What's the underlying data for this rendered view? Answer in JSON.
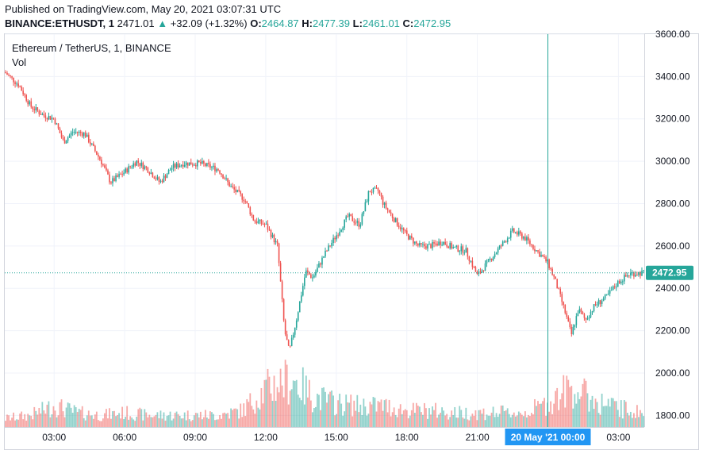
{
  "published_line": "Published on TradingView.com, May 20, 2021 03:07:31 UTC",
  "header": {
    "symbol": "BINANCE:ETHUSDT, 1",
    "last": "2471.01",
    "change": "+32.09 (+1.32%)",
    "o_label": "O:",
    "o": "2464.87",
    "h_label": "H:",
    "h": "2477.39",
    "l_label": "L:",
    "l": "2461.01",
    "c_label": "C:",
    "c": "2472.95"
  },
  "legend": {
    "title": "Ethereum / TetherUS, 1, BINANCE",
    "vol": "Vol"
  },
  "colors": {
    "up": "#26a69a",
    "down": "#ef5350",
    "grid": "#f0f3fa",
    "axis_text": "#131722",
    "crosshair": "#2196f3",
    "price_badge": "#26a69a"
  },
  "chart_data": {
    "type": "candlestick",
    "price_axis": {
      "ticks": [
        3600,
        3400,
        3200,
        3000,
        2800,
        2600,
        2400,
        2200,
        2000,
        1800
      ],
      "tick_labels": [
        "3600.00",
        "3400.00",
        "3200.00",
        "3000.00",
        "2800.00",
        "2600.00",
        "2400.00",
        "2200.00",
        "2000.00",
        "1800.00"
      ],
      "ylim": [
        1745,
        3600
      ]
    },
    "time_axis": {
      "tick_labels": [
        "03:00",
        "06:00",
        "09:00",
        "12:00",
        "15:00",
        "18:00",
        "21:00",
        "00:00",
        "03:00"
      ],
      "tick_hours": [
        3,
        6,
        9,
        12,
        15,
        18,
        21,
        24,
        27
      ],
      "xlim_hours": [
        0.9,
        28.1
      ],
      "crosshair_label": "20 May '21  00:00",
      "crosshair_hour": 24.0
    },
    "last_price": 2472.95,
    "last_price_label": "2472.95",
    "close_path": [
      [
        0.9,
        3420
      ],
      [
        1.5,
        3360
      ],
      [
        2.0,
        3260
      ],
      [
        2.5,
        3220
      ],
      [
        3.0,
        3200
      ],
      [
        3.4,
        3090
      ],
      [
        3.8,
        3140
      ],
      [
        4.3,
        3130
      ],
      [
        5.0,
        3000
      ],
      [
        5.4,
        2900
      ],
      [
        6.0,
        2950
      ],
      [
        6.5,
        3000
      ],
      [
        7.0,
        2960
      ],
      [
        7.5,
        2900
      ],
      [
        8.0,
        2970
      ],
      [
        8.5,
        2990
      ],
      [
        9.2,
        2990
      ],
      [
        10.0,
        2960
      ],
      [
        10.5,
        2880
      ],
      [
        11.1,
        2820
      ],
      [
        11.5,
        2720
      ],
      [
        12.0,
        2700
      ],
      [
        12.5,
        2600
      ],
      [
        12.8,
        2200
      ],
      [
        13.0,
        2100
      ],
      [
        13.3,
        2250
      ],
      [
        13.7,
        2480
      ],
      [
        14.0,
        2450
      ],
      [
        14.5,
        2560
      ],
      [
        15.0,
        2650
      ],
      [
        15.5,
        2740
      ],
      [
        16.0,
        2700
      ],
      [
        16.4,
        2860
      ],
      [
        16.8,
        2860
      ],
      [
        17.0,
        2800
      ],
      [
        17.5,
        2720
      ],
      [
        18.0,
        2650
      ],
      [
        18.5,
        2600
      ],
      [
        19.0,
        2600
      ],
      [
        19.5,
        2620
      ],
      [
        20.0,
        2590
      ],
      [
        20.5,
        2580
      ],
      [
        21.0,
        2460
      ],
      [
        21.5,
        2530
      ],
      [
        22.0,
        2600
      ],
      [
        22.5,
        2670
      ],
      [
        23.0,
        2640
      ],
      [
        23.5,
        2580
      ],
      [
        24.0,
        2520
      ],
      [
        24.3,
        2440
      ],
      [
        24.7,
        2300
      ],
      [
        25.0,
        2180
      ],
      [
        25.3,
        2300
      ],
      [
        25.6,
        2250
      ],
      [
        26.0,
        2320
      ],
      [
        26.5,
        2360
      ],
      [
        27.0,
        2430
      ],
      [
        27.5,
        2470
      ],
      [
        28.1,
        2473
      ]
    ],
    "volume_profile": [
      [
        0.9,
        0.18
      ],
      [
        2.0,
        0.25
      ],
      [
        3.0,
        0.45
      ],
      [
        4.0,
        0.3
      ],
      [
        5.0,
        0.25
      ],
      [
        6.0,
        0.3
      ],
      [
        7.0,
        0.25
      ],
      [
        8.0,
        0.25
      ],
      [
        9.0,
        0.25
      ],
      [
        10.0,
        0.25
      ],
      [
        11.0,
        0.35
      ],
      [
        12.0,
        0.8
      ],
      [
        12.6,
        0.95
      ],
      [
        13.2,
        1.0
      ],
      [
        14.0,
        0.65
      ],
      [
        15.0,
        0.5
      ],
      [
        16.0,
        0.45
      ],
      [
        17.0,
        0.45
      ],
      [
        18.0,
        0.35
      ],
      [
        19.0,
        0.35
      ],
      [
        20.0,
        0.3
      ],
      [
        21.0,
        0.3
      ],
      [
        22.0,
        0.3
      ],
      [
        23.0,
        0.3
      ],
      [
        24.0,
        0.5
      ],
      [
        25.0,
        0.85
      ],
      [
        26.0,
        0.55
      ],
      [
        27.0,
        0.4
      ],
      [
        28.1,
        0.3
      ]
    ]
  }
}
